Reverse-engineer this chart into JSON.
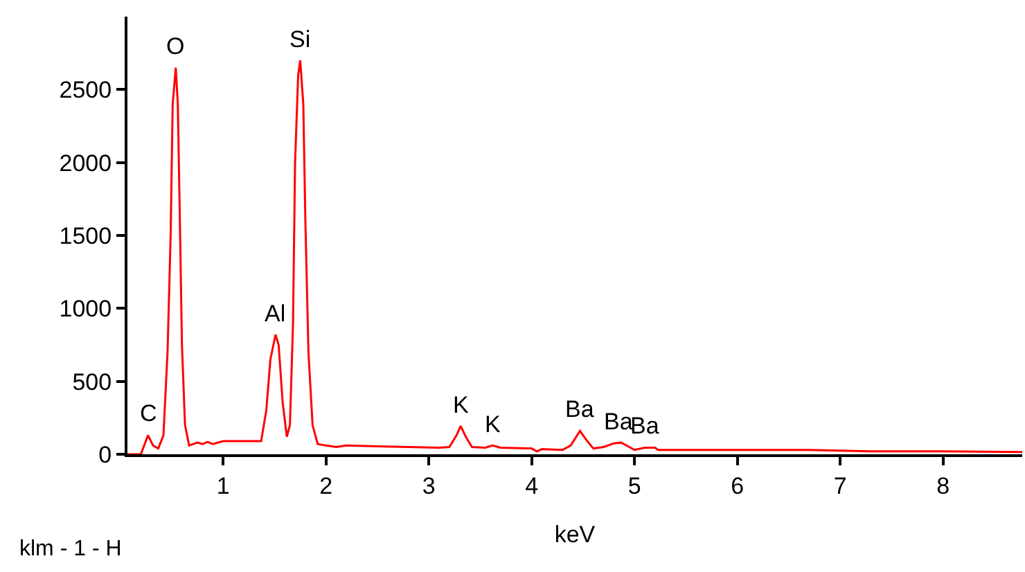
{
  "chart_data": {
    "type": "line",
    "xlabel": "keV",
    "x": [
      0.07,
      0.2,
      0.27,
      0.32,
      0.37,
      0.42,
      0.46,
      0.49,
      0.51,
      0.54,
      0.56,
      0.58,
      0.6,
      0.63,
      0.67,
      0.75,
      0.8,
      0.85,
      0.9,
      1.0,
      1.2,
      1.37,
      1.42,
      1.46,
      1.51,
      1.54,
      1.58,
      1.62,
      1.65,
      1.68,
      1.7,
      1.73,
      1.75,
      1.78,
      1.8,
      1.83,
      1.87,
      1.92,
      2.0,
      2.1,
      2.2,
      2.5,
      2.8,
      3.1,
      3.2,
      3.27,
      3.31,
      3.36,
      3.42,
      3.55,
      3.62,
      3.7,
      4.0,
      4.05,
      4.1,
      4.3,
      4.38,
      4.47,
      4.53,
      4.6,
      4.7,
      4.8,
      4.87,
      4.95,
      5.0,
      5.1,
      5.2,
      5.23,
      6.0,
      6.7,
      7.0,
      7.3,
      8.0,
      8.77
    ],
    "series": [
      {
        "color": "#ff0000",
        "values": [
          0,
          0,
          130,
          60,
          40,
          130,
          700,
          1500,
          2400,
          2650,
          2400,
          1600,
          750,
          200,
          60,
          80,
          70,
          85,
          70,
          90,
          90,
          90,
          300,
          650,
          820,
          750,
          350,
          120,
          200,
          900,
          2000,
          2600,
          2700,
          2400,
          1600,
          700,
          200,
          70,
          60,
          50,
          60,
          55,
          50,
          45,
          50,
          130,
          194,
          120,
          50,
          45,
          60,
          45,
          40,
          20,
          35,
          30,
          60,
          160,
          100,
          40,
          50,
          75,
          80,
          50,
          30,
          45,
          45,
          30,
          30,
          30,
          25,
          20,
          20,
          15
        ]
      }
    ],
    "annotations": [
      {
        "text": "C",
        "x": 0.27,
        "y": 130
      },
      {
        "text": "O",
        "x": 0.54,
        "y": 2650
      },
      {
        "text": "Al",
        "x": 1.51,
        "y": 820
      },
      {
        "text": "Si",
        "x": 1.75,
        "y": 2700
      },
      {
        "text": "K",
        "x": 3.31,
        "y": 194
      },
      {
        "text": "K",
        "x": 3.62,
        "y": 60
      },
      {
        "text": "Ba",
        "x": 4.47,
        "y": 160
      },
      {
        "text": "Ba",
        "x": 4.85,
        "y": 80
      },
      {
        "text": "Ba",
        "x": 5.1,
        "y": 45
      },
      "klm - 1 - H"
    ],
    "xlim": [
      0.07,
      8.77
    ],
    "xticks": [
      1,
      2,
      3,
      4,
      5,
      6,
      7,
      8
    ],
    "ylim": [
      0,
      3000
    ],
    "yticks": [
      0,
      500,
      1000,
      1500,
      2000,
      2500
    ],
    "marker": "none",
    "line_style": "solid"
  }
}
